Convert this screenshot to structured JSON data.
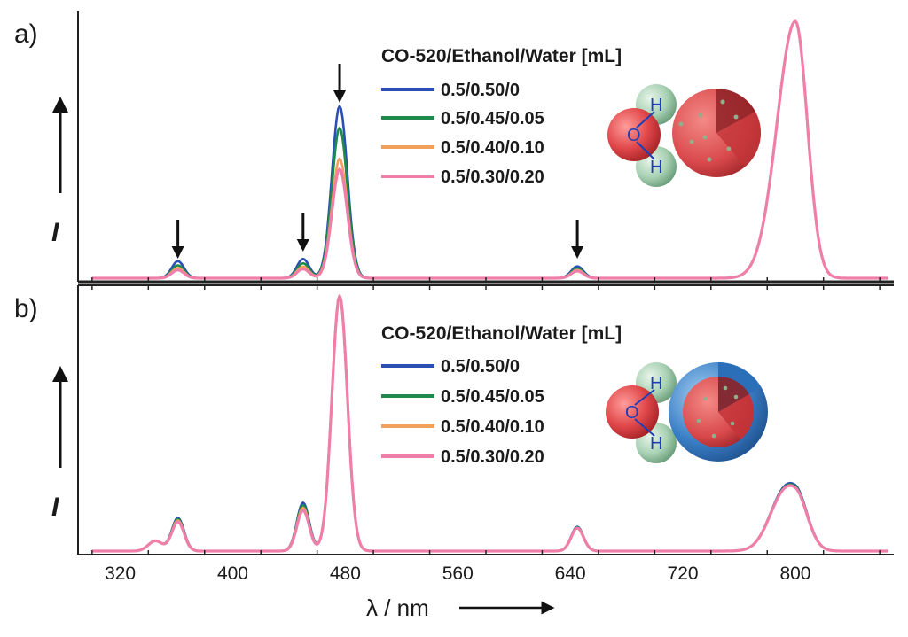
{
  "chart_data": [
    {
      "type": "line",
      "panel_label": "a)",
      "ylabel": "I",
      "xlabel": "λ / nm",
      "xlim": [
        290,
        870
      ],
      "x_ticks": [
        320,
        400,
        480,
        560,
        640,
        720,
        800
      ],
      "legend": {
        "title": "CO-520/Ethanol/Water [mL]",
        "placement": "top-center"
      },
      "peak_markers_nm": [
        361,
        450,
        476,
        645
      ],
      "series": [
        {
          "name": "0.5/0.50/0",
          "color": "#2b4fb3",
          "peaks": [
            {
              "x": 361,
              "y": 0.066
            },
            {
              "x": 450,
              "y": 0.075
            },
            {
              "x": 476,
              "y": 0.67
            },
            {
              "x": 645,
              "y": 0.046
            },
            {
              "x": 800,
              "y": 1.0
            }
          ]
        },
        {
          "name": "0.5/0.45/0.05",
          "color": "#1e8a4c",
          "peaks": [
            {
              "x": 361,
              "y": 0.05
            },
            {
              "x": 450,
              "y": 0.058
            },
            {
              "x": 476,
              "y": 0.585
            },
            {
              "x": 645,
              "y": 0.038
            },
            {
              "x": 800,
              "y": 1.0
            }
          ]
        },
        {
          "name": "0.5/0.40/0.10",
          "color": "#f2a15a",
          "peaks": [
            {
              "x": 361,
              "y": 0.04
            },
            {
              "x": 450,
              "y": 0.045
            },
            {
              "x": 476,
              "y": 0.465
            },
            {
              "x": 645,
              "y": 0.032
            },
            {
              "x": 800,
              "y": 1.0
            }
          ]
        },
        {
          "name": "0.5/0.30/0.20",
          "color": "#ef7fa8",
          "peaks": [
            {
              "x": 361,
              "y": 0.032
            },
            {
              "x": 450,
              "y": 0.036
            },
            {
              "x": 476,
              "y": 0.425
            },
            {
              "x": 645,
              "y": 0.028
            },
            {
              "x": 800,
              "y": 1.0
            }
          ]
        }
      ]
    },
    {
      "type": "line",
      "panel_label": "b)",
      "ylabel": "I",
      "xlabel": "λ / nm",
      "xlim": [
        290,
        870
      ],
      "x_ticks": [
        320,
        400,
        480,
        560,
        640,
        720,
        800
      ],
      "legend": {
        "title": "CO-520/Ethanol/Water [mL]",
        "placement": "top-center"
      },
      "series": [
        {
          "name": "0.5/0.50/0",
          "color": "#2b4fb3",
          "peaks": [
            {
              "x": 345,
              "y": 0.04
            },
            {
              "x": 361,
              "y": 0.13
            },
            {
              "x": 450,
              "y": 0.19
            },
            {
              "x": 476,
              "y": 1.0
            },
            {
              "x": 645,
              "y": 0.095
            },
            {
              "x": 788,
              "y": 0.07
            },
            {
              "x": 800,
              "y": 0.23
            }
          ]
        },
        {
          "name": "0.5/0.45/0.05",
          "color": "#1e8a4c",
          "peaks": [
            {
              "x": 345,
              "y": 0.04
            },
            {
              "x": 361,
              "y": 0.125
            },
            {
              "x": 450,
              "y": 0.18
            },
            {
              "x": 476,
              "y": 1.0
            },
            {
              "x": 645,
              "y": 0.093
            },
            {
              "x": 788,
              "y": 0.07
            },
            {
              "x": 800,
              "y": 0.225
            }
          ]
        },
        {
          "name": "0.5/0.40/0.10",
          "color": "#f2a15a",
          "peaks": [
            {
              "x": 345,
              "y": 0.04
            },
            {
              "x": 361,
              "y": 0.12
            },
            {
              "x": 450,
              "y": 0.17
            },
            {
              "x": 476,
              "y": 1.0
            },
            {
              "x": 645,
              "y": 0.091
            },
            {
              "x": 788,
              "y": 0.07
            },
            {
              "x": 800,
              "y": 0.22
            }
          ]
        },
        {
          "name": "0.5/0.30/0.20",
          "color": "#ef7fa8",
          "peaks": [
            {
              "x": 345,
              "y": 0.04
            },
            {
              "x": 361,
              "y": 0.115
            },
            {
              "x": 450,
              "y": 0.16
            },
            {
              "x": 476,
              "y": 1.0
            },
            {
              "x": 645,
              "y": 0.09
            },
            {
              "x": 788,
              "y": 0.07
            },
            {
              "x": 800,
              "y": 0.22
            }
          ]
        }
      ]
    }
  ],
  "molecule": {
    "oxygen": "O",
    "hydrogen": "H"
  },
  "colors": {
    "axis": "#222222",
    "water_oxygen": "#e0474a",
    "water_hydrogen": "#a9d1b4",
    "particle_core": "#d9494c",
    "particle_shell": "#3a7fc6"
  }
}
